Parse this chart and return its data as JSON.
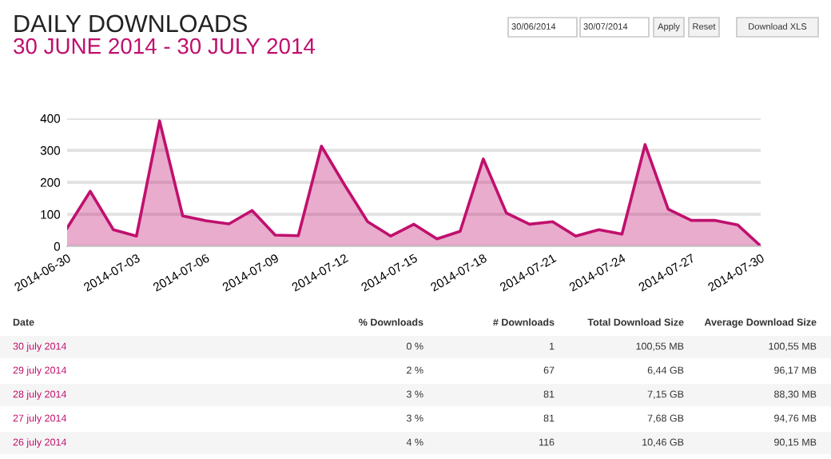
{
  "chart_data": {
    "type": "area",
    "title": "DAILY DOWNLOADS",
    "subtitle": "30 JUNE 2014 - 30 JULY 2014",
    "x": [
      "2014-06-30",
      "2014-07-01",
      "2014-07-02",
      "2014-07-03",
      "2014-07-04",
      "2014-07-05",
      "2014-07-06",
      "2014-07-07",
      "2014-07-08",
      "2014-07-09",
      "2014-07-10",
      "2014-07-11",
      "2014-07-12",
      "2014-07-13",
      "2014-07-14",
      "2014-07-15",
      "2014-07-16",
      "2014-07-17",
      "2014-07-18",
      "2014-07-19",
      "2014-07-20",
      "2014-07-21",
      "2014-07-22",
      "2014-07-23",
      "2014-07-24",
      "2014-07-25",
      "2014-07-26",
      "2014-07-27",
      "2014-07-28",
      "2014-07-29",
      "2014-07-30"
    ],
    "series": [
      {
        "color": "#c0106e",
        "values": [
          57,
          172,
          52,
          32,
          392,
          95,
          80,
          70,
          112,
          35,
          33,
          313,
          192,
          77,
          32,
          69,
          23,
          47,
          273,
          104,
          69,
          77,
          32,
          52,
          38,
          318,
          116,
          81,
          81,
          67,
          1
        ]
      }
    ],
    "xlim": [
      "2014-06-30",
      "2014-07-30"
    ],
    "xticks": [
      "2014-06-30",
      "2014-07-03",
      "2014-07-06",
      "2014-07-09",
      "2014-07-12",
      "2014-07-15",
      "2014-07-18",
      "2014-07-21",
      "2014-07-24",
      "2014-07-27",
      "2014-07-30"
    ],
    "ylim": [
      0,
      400
    ],
    "yticks": [
      0,
      100,
      200,
      300,
      400
    ],
    "grid": "y",
    "legend": false,
    "marker": "none",
    "line_style": "solid",
    "annotations": [
      "30/06/2014",
      "30/07/2014",
      "Apply",
      "Reset",
      "Download XLS",
      "Date",
      "% Downloads",
      "# Downloads",
      "Total Download Size",
      "Average Download Size",
      "30 july 2014",
      "0 %",
      "1",
      "100,55 MB",
      "100,55 MB",
      "29 july 2014",
      "2 %",
      "67",
      "6,44 GB",
      "96,17 MB",
      "28 july 2014",
      "3 %",
      "81",
      "7,15 GB",
      "88,30 MB",
      "27 july 2014",
      "3 %",
      "81",
      "7,68 GB",
      "94,76 MB",
      "26 july 2014",
      "4 %",
      "116",
      "10,46 GB",
      "90,15 MB"
    ]
  }
}
